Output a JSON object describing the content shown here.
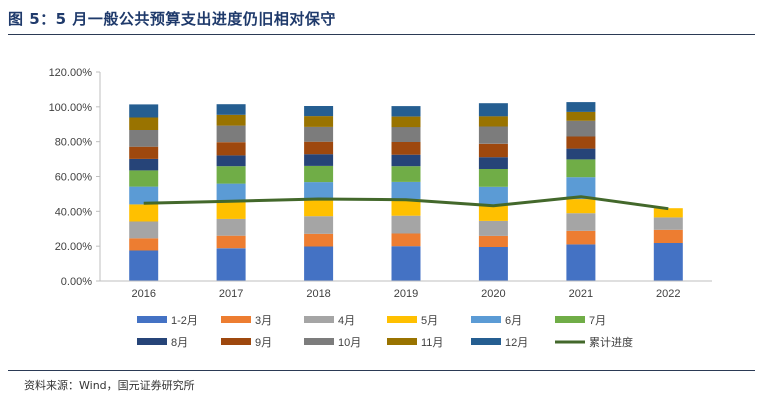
{
  "title": "图 5：5 月一般公共预算支出进度仍旧相对保守",
  "source": "资料来源：Wind，国元证券研究所",
  "chart_data": {
    "type": "bar",
    "stacked": true,
    "categories": [
      "2016",
      "2017",
      "2018",
      "2019",
      "2020",
      "2021",
      "2022"
    ],
    "y_ticks": [
      "0.00%",
      "20.00%",
      "40.00%",
      "60.00%",
      "80.00%",
      "100.00%",
      "120.00%"
    ],
    "ylim": [
      0,
      120
    ],
    "grid": false,
    "legend_position": "bottom",
    "series": [
      {
        "name": "1-2月",
        "color": "#4472c4",
        "values": [
          17.5,
          18.8,
          19.8,
          20.0,
          19.5,
          21.0,
          21.8
        ]
      },
      {
        "name": "3月",
        "color": "#ed7d31",
        "values": [
          7.0,
          7.2,
          7.3,
          7.3,
          6.4,
          7.8,
          7.6
        ]
      },
      {
        "name": "4月",
        "color": "#a5a5a5",
        "values": [
          9.7,
          9.7,
          10.1,
          10.2,
          8.6,
          10.1,
          7.1
        ]
      },
      {
        "name": "5月",
        "color": "#ffc000",
        "values": [
          9.8,
          9.8,
          9.5,
          9.6,
          9.5,
          8.1,
          5.3
        ]
      },
      {
        "name": "6月",
        "color": "#5b9bd5",
        "values": [
          10.2,
          10.4,
          10.1,
          9.8,
          10.1,
          12.6,
          null
        ]
      },
      {
        "name": "7月",
        "color": "#70ad47",
        "values": [
          9.3,
          10.0,
          9.3,
          9.0,
          10.2,
          10.2,
          null
        ]
      },
      {
        "name": "8月",
        "color": "#264478",
        "values": [
          6.6,
          6.2,
          6.7,
          6.6,
          6.8,
          6.2,
          null
        ]
      },
      {
        "name": "9月",
        "color": "#9e480e",
        "values": [
          7.0,
          7.6,
          7.2,
          7.3,
          7.7,
          7.0,
          null
        ]
      },
      {
        "name": "10月",
        "color": "#7c7c7c",
        "values": [
          9.6,
          9.5,
          8.5,
          8.6,
          9.9,
          9.0,
          null
        ]
      },
      {
        "name": "11月",
        "color": "#997300",
        "values": [
          7.2,
          6.2,
          6.2,
          6.0,
          5.9,
          5.1,
          null
        ]
      },
      {
        "name": "12月",
        "color": "#255e91",
        "values": [
          7.5,
          6.1,
          5.8,
          6.0,
          7.5,
          5.6,
          null
        ]
      }
    ],
    "line_series": {
      "name": "累计进度",
      "color": "#43682b",
      "values": [
        44.6,
        45.8,
        47.1,
        46.7,
        43.2,
        48.4,
        41.5
      ]
    }
  }
}
